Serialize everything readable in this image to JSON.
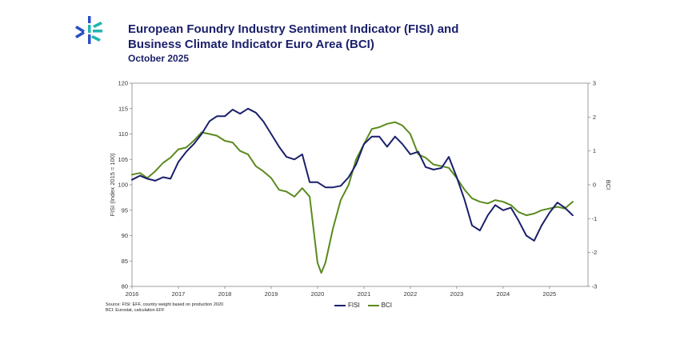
{
  "header": {
    "title_line1": "European Foundry Industry Sentiment Indicator (FISI) and",
    "title_line2": "Business Climate Indicator Euro Area (BCI)",
    "subtitle": "October 2025"
  },
  "notes": {
    "line1": "Source: FISI: EFF, country weight based on production 2020",
    "line2": "BCI: Eurostat, calculation EFF"
  },
  "colors": {
    "fisi": "#1a1f6b",
    "bci": "#5b8a1f",
    "brand_blue": "#2a50c8",
    "brand_teal": "#1fb5b0"
  },
  "chart_data": {
    "type": "line",
    "title": "European Foundry Industry Sentiment Indicator (FISI) and Business Climate Indicator Euro Area (BCI)",
    "ylabel": "FISI (Index 2015 = 100)",
    "y2label": "BCI",
    "ylim": [
      80,
      120
    ],
    "y2lim": [
      -3,
      3
    ],
    "yticks": [
      80,
      85,
      90,
      95,
      100,
      105,
      110,
      115,
      120
    ],
    "y2ticks": [
      -3,
      -2,
      -1,
      0,
      1,
      2,
      3
    ],
    "xlim": [
      2016,
      2025.83
    ],
    "xticks": [
      "2016",
      "2017",
      "2018",
      "2019",
      "2020",
      "2021",
      "2022",
      "2023",
      "2024",
      "2025"
    ],
    "legend": "bottom-center",
    "series": [
      {
        "name": "FISI",
        "axis": "left",
        "x": [
          2016.0,
          2016.17,
          2016.33,
          2016.5,
          2016.67,
          2016.83,
          2017.0,
          2017.17,
          2017.33,
          2017.5,
          2017.67,
          2017.83,
          2018.0,
          2018.17,
          2018.33,
          2018.5,
          2018.67,
          2018.83,
          2019.0,
          2019.17,
          2019.33,
          2019.5,
          2019.67,
          2019.83,
          2020.0,
          2020.17,
          2020.33,
          2020.5,
          2020.67,
          2020.83,
          2021.0,
          2021.17,
          2021.33,
          2021.5,
          2021.67,
          2021.83,
          2022.0,
          2022.17,
          2022.33,
          2022.5,
          2022.67,
          2022.83,
          2023.0,
          2023.17,
          2023.33,
          2023.5,
          2023.67,
          2023.83,
          2024.0,
          2024.17,
          2024.33,
          2024.5,
          2024.67,
          2024.83,
          2025.0,
          2025.17,
          2025.33,
          2025.5
        ],
        "values": [
          101,
          101.8,
          101.2,
          100.8,
          101.5,
          101.2,
          104.5,
          106.5,
          108,
          110,
          112.5,
          113.5,
          113.5,
          114.8,
          114,
          115,
          114.2,
          112.5,
          110,
          107.5,
          105.5,
          105,
          106,
          100.5,
          100.5,
          99.5,
          99.5,
          99.8,
          101.5,
          104,
          108,
          109.5,
          109.5,
          107.5,
          109.5,
          108,
          106,
          106.5,
          103.5,
          103,
          103.3,
          105.5,
          101.5,
          97,
          92,
          91,
          94,
          96,
          95,
          95.5,
          93,
          90,
          89,
          92,
          94.5,
          96.5,
          95.5,
          94
        ]
      },
      {
        "name": "BCI",
        "axis": "right",
        "x": [
          2016.0,
          2016.17,
          2016.33,
          2016.5,
          2016.67,
          2016.83,
          2017.0,
          2017.17,
          2017.33,
          2017.5,
          2017.67,
          2017.83,
          2018.0,
          2018.17,
          2018.33,
          2018.5,
          2018.67,
          2018.83,
          2019.0,
          2019.17,
          2019.33,
          2019.5,
          2019.67,
          2019.83,
          2020.0,
          2020.08,
          2020.17,
          2020.33,
          2020.5,
          2020.67,
          2020.83,
          2021.0,
          2021.17,
          2021.33,
          2021.5,
          2021.67,
          2021.83,
          2022.0,
          2022.17,
          2022.33,
          2022.5,
          2022.67,
          2022.83,
          2023.0,
          2023.17,
          2023.33,
          2023.5,
          2023.67,
          2023.83,
          2024.0,
          2024.17,
          2024.33,
          2024.5,
          2024.67,
          2024.83,
          2025.0,
          2025.17,
          2025.33,
          2025.5
        ],
        "values": [
          0.3,
          0.35,
          0.2,
          0.4,
          0.65,
          0.8,
          1.05,
          1.1,
          1.3,
          1.55,
          1.5,
          1.45,
          1.3,
          1.25,
          1.0,
          0.9,
          0.55,
          0.4,
          0.2,
          -0.15,
          -0.2,
          -0.35,
          -0.1,
          -0.35,
          -2.3,
          -2.6,
          -2.3,
          -1.3,
          -0.45,
          0.0,
          0.75,
          1.2,
          1.65,
          1.7,
          1.8,
          1.85,
          1.75,
          1.5,
          0.9,
          0.8,
          0.6,
          0.55,
          0.5,
          0.2,
          -0.15,
          -0.4,
          -0.5,
          -0.55,
          -0.45,
          -0.5,
          -0.6,
          -0.8,
          -0.9,
          -0.85,
          -0.75,
          -0.7,
          -0.65,
          -0.7,
          -0.5
        ]
      }
    ]
  }
}
